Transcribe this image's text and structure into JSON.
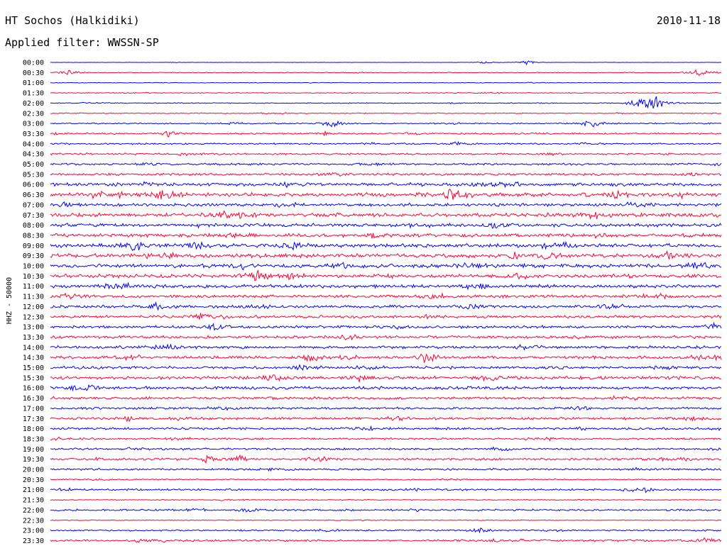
{
  "header": {
    "station": "HT Sochos (Halkidiki)",
    "date": "2010-11-18",
    "filter": "Applied filter: WWSSN-SP"
  },
  "chart_data": {
    "type": "line",
    "title": "HT Sochos (Halkidiki)",
    "ylabel": "HHZ - 50000",
    "xlabel": "",
    "row_labels": [
      "00:00",
      "00:30",
      "01:00",
      "01:30",
      "02:00",
      "02:30",
      "03:00",
      "03:30",
      "04:00",
      "04:30",
      "05:00",
      "05:30",
      "06:00",
      "06:30",
      "07:00",
      "07:30",
      "08:00",
      "08:30",
      "09:00",
      "09:30",
      "10:00",
      "10:30",
      "11:00",
      "11:30",
      "12:00",
      "12:30",
      "13:00",
      "13:30",
      "14:00",
      "14:30",
      "15:00",
      "15:30",
      "16:00",
      "16:30",
      "17:00",
      "17:30",
      "18:00",
      "18:30",
      "19:00",
      "19:30",
      "20:00",
      "20:30",
      "21:00",
      "21:30",
      "22:00",
      "22:30",
      "23:00",
      "23:30"
    ],
    "row_minutes": 30,
    "colors": [
      "#0000ff",
      "#ff0033"
    ],
    "row_noise": [
      0.2,
      0.5,
      0.4,
      0.5,
      0.6,
      0.6,
      0.9,
      1.0,
      1.0,
      1.2,
      1.3,
      1.5,
      2.2,
      2.5,
      2.0,
      2.5,
      2.2,
      2.2,
      2.5,
      2.5,
      2.5,
      2.4,
      2.2,
      2.0,
      1.8,
      1.8,
      1.8,
      1.8,
      1.8,
      1.8,
      1.8,
      2.0,
      2.0,
      1.6,
      1.5,
      1.6,
      1.5,
      1.3,
      1.3,
      1.5,
      1.3,
      0.8,
      1.2,
      0.6,
      1.2,
      0.5,
      1.0,
      1.3
    ],
    "events": [
      {
        "row": 0,
        "minute": 19.4,
        "amp": 2
      },
      {
        "row": 0,
        "minute": 21.3,
        "amp": 3
      },
      {
        "row": 1,
        "minute": 0.8,
        "amp": 4
      },
      {
        "row": 1,
        "minute": 29.0,
        "amp": 5
      },
      {
        "row": 4,
        "minute": 26.4,
        "amp": 12
      },
      {
        "row": 4,
        "minute": 27.1,
        "amp": 9
      },
      {
        "row": 6,
        "minute": 12.6,
        "amp": 6
      },
      {
        "row": 6,
        "minute": 24.2,
        "amp": 6
      },
      {
        "row": 7,
        "minute": 5.3,
        "amp": 4
      },
      {
        "row": 7,
        "minute": 12.3,
        "amp": 3
      },
      {
        "row": 8,
        "minute": 18.2,
        "amp": 3
      },
      {
        "row": 13,
        "minute": 5.1,
        "amp": 8
      },
      {
        "row": 13,
        "minute": 17.9,
        "amp": 5
      },
      {
        "row": 13,
        "minute": 25.3,
        "amp": 5
      },
      {
        "row": 15,
        "minute": 7.8,
        "amp": 5
      },
      {
        "row": 16,
        "minute": 19.9,
        "amp": 4
      },
      {
        "row": 17,
        "minute": 8.4,
        "amp": 4
      },
      {
        "row": 18,
        "minute": 3.8,
        "amp": 7
      },
      {
        "row": 18,
        "minute": 10.8,
        "amp": 6
      },
      {
        "row": 19,
        "minute": 22.3,
        "amp": 5
      },
      {
        "row": 19,
        "minute": 27.6,
        "amp": 5
      },
      {
        "row": 20,
        "minute": 8.6,
        "amp": 4
      },
      {
        "row": 20,
        "minute": 18.7,
        "amp": 5
      },
      {
        "row": 21,
        "minute": 9.3,
        "amp": 8
      },
      {
        "row": 24,
        "minute": 4.7,
        "amp": 5
      },
      {
        "row": 24,
        "minute": 18.8,
        "amp": 4
      },
      {
        "row": 25,
        "minute": 6.8,
        "amp": 5
      },
      {
        "row": 26,
        "minute": 7.4,
        "amp": 5
      },
      {
        "row": 26,
        "minute": 29.7,
        "amp": 5
      },
      {
        "row": 29,
        "minute": 11.6,
        "amp": 7
      },
      {
        "row": 29,
        "minute": 16.8,
        "amp": 8
      },
      {
        "row": 30,
        "minute": 14.2,
        "amp": 5
      },
      {
        "row": 31,
        "minute": 13.8,
        "amp": 4
      },
      {
        "row": 31,
        "minute": 10.0,
        "amp": 4
      },
      {
        "row": 35,
        "minute": 3.5,
        "amp": 3
      },
      {
        "row": 35,
        "minute": 28.7,
        "amp": 3
      },
      {
        "row": 37,
        "minute": 0.3,
        "amp": 2
      },
      {
        "row": 39,
        "minute": 7.0,
        "amp": 4
      },
      {
        "row": 39,
        "minute": 8.5,
        "amp": 5
      },
      {
        "row": 42,
        "minute": 26.6,
        "amp": 3
      },
      {
        "row": 44,
        "minute": 8.7,
        "amp": 3
      },
      {
        "row": 46,
        "minute": 19.2,
        "amp": 3
      },
      {
        "row": 47,
        "minute": 29.2,
        "amp": 4
      }
    ]
  }
}
